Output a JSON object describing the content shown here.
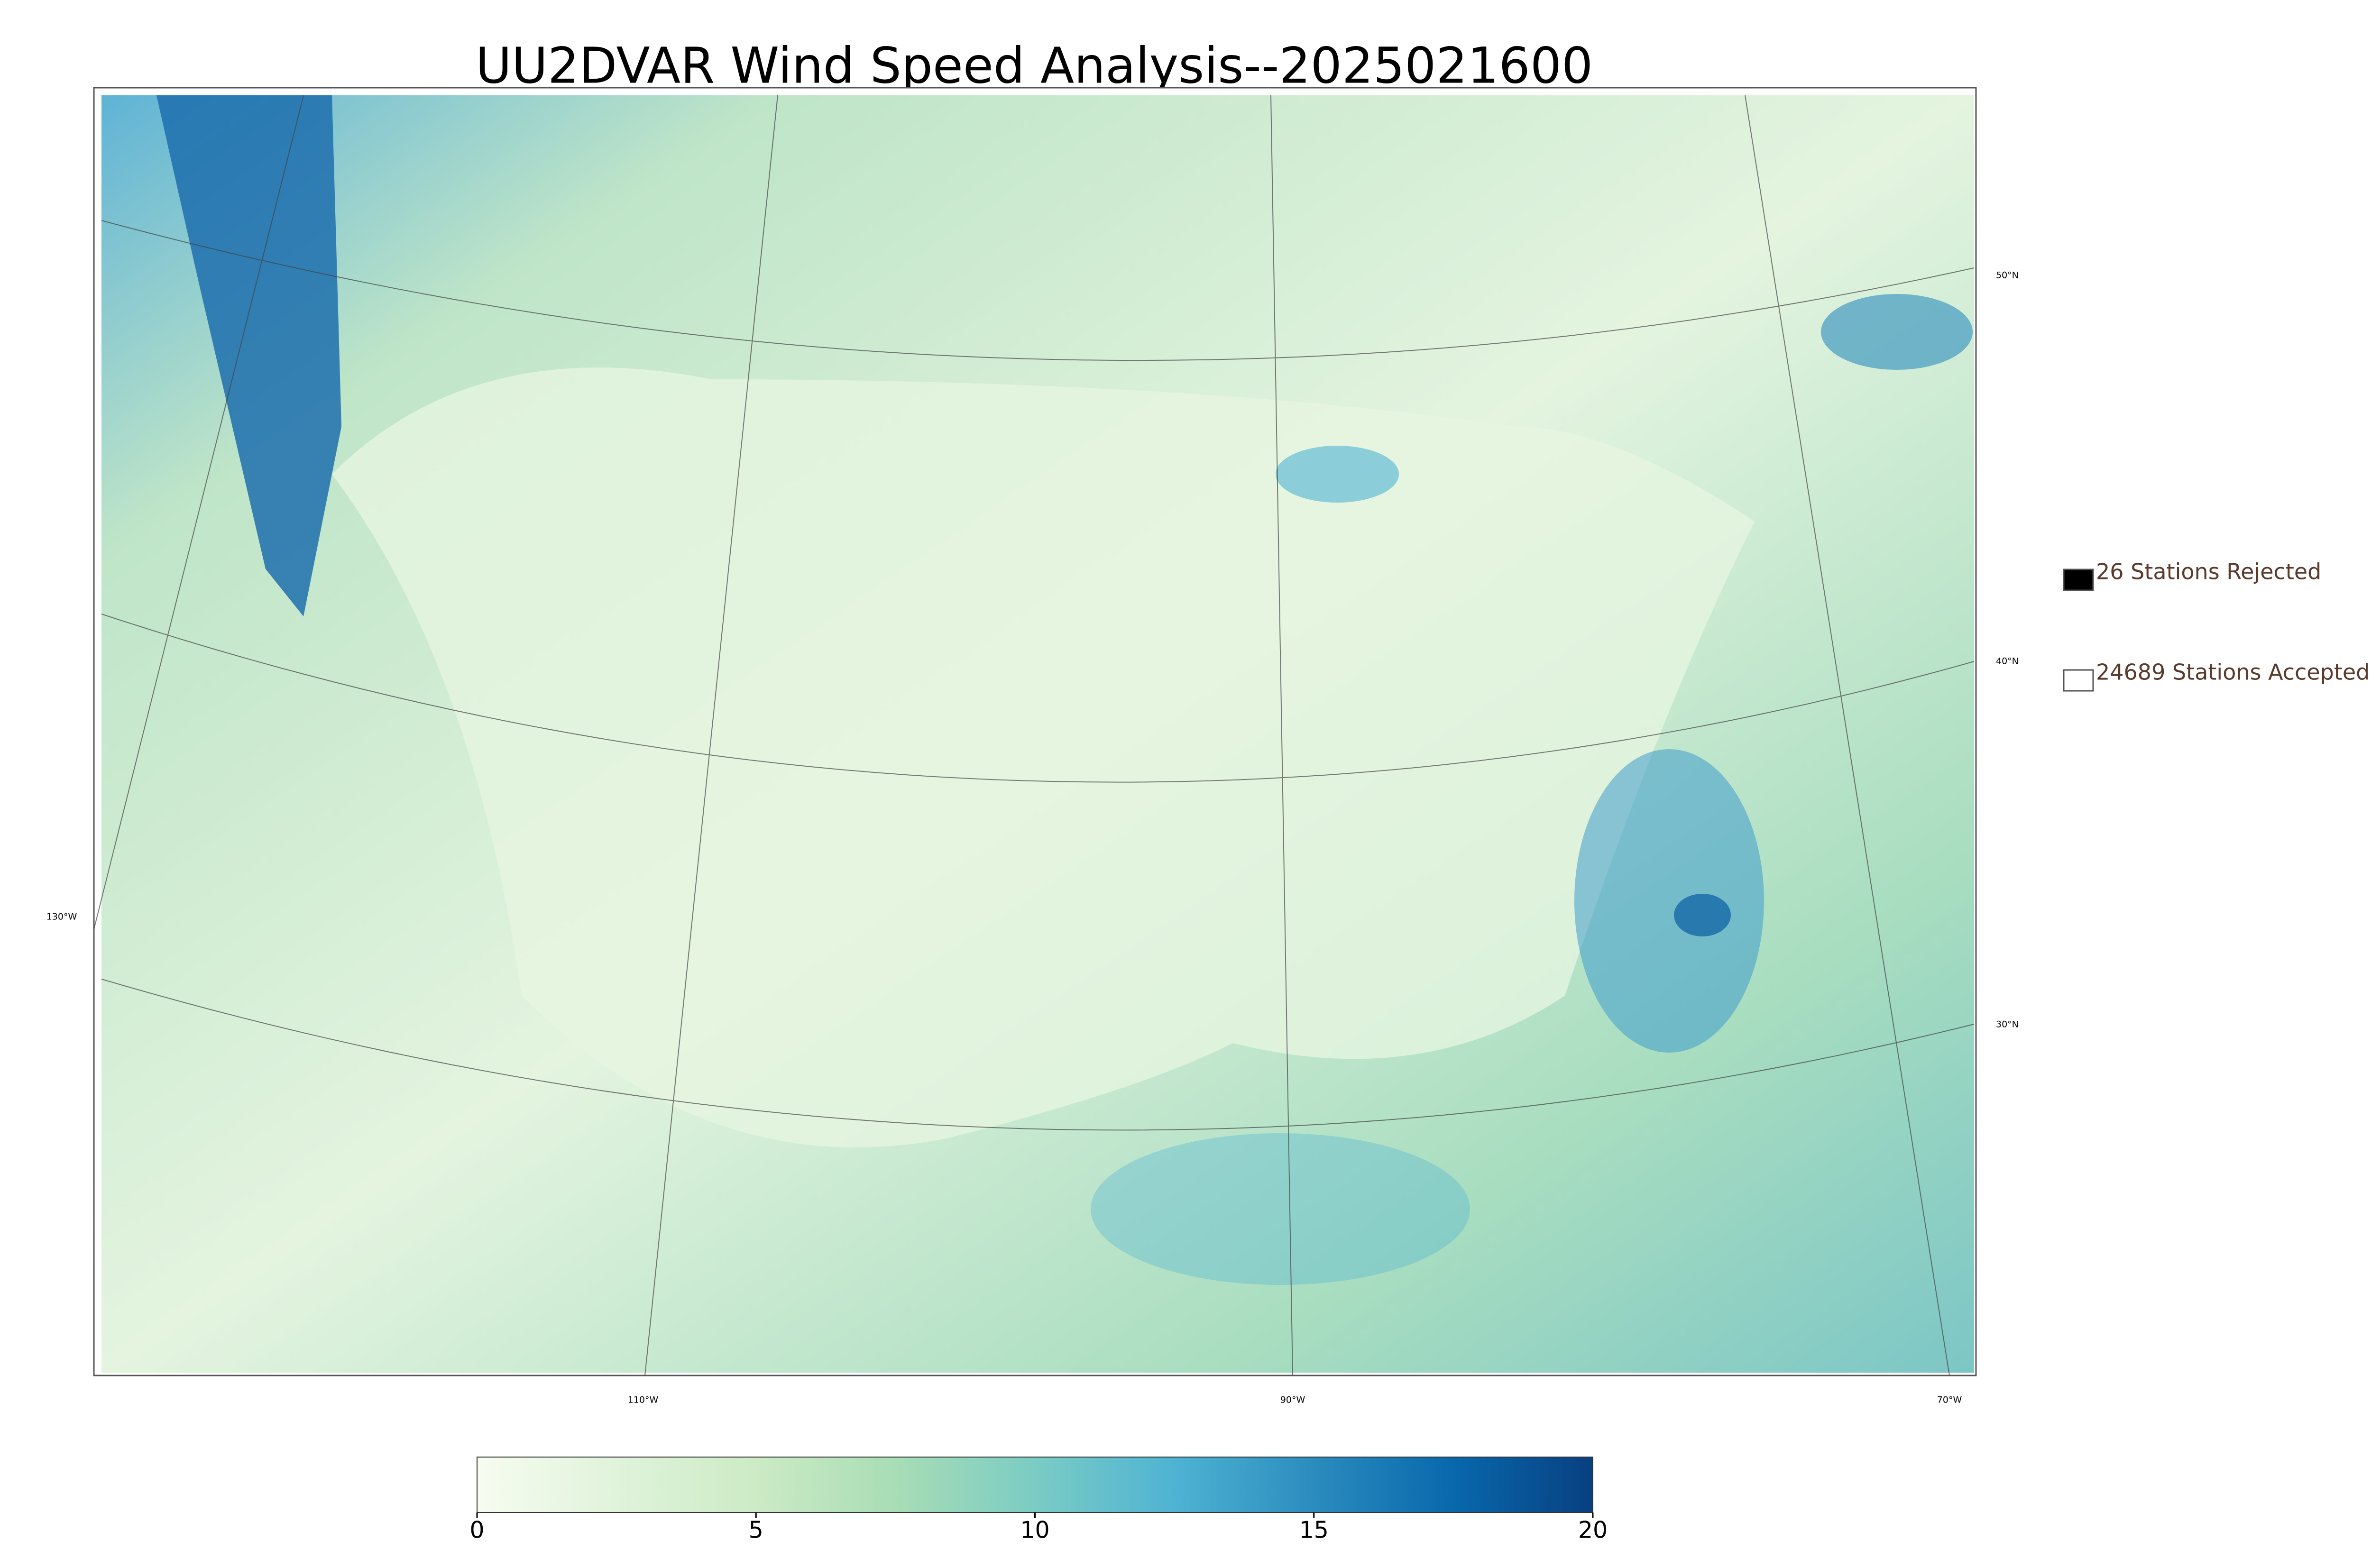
{
  "title": "UU2DVAR Wind Speed Analysis--2025021600",
  "legend": [
    {
      "label": "26 Stations Rejected",
      "fill": "#000000"
    },
    {
      "label": "24689 Stations Accepted",
      "fill": "#ffffff"
    }
  ],
  "latitude_labels": [
    "50°N",
    "40°N",
    "30°N"
  ],
  "longitude_labels": [
    "130°W",
    "110°W",
    "90°W",
    "70°W"
  ],
  "colorbar": {
    "lim": [
      0,
      20
    ],
    "ticks": [
      0,
      5,
      10,
      15,
      20
    ],
    "colors": [
      "#f7fcf0",
      "#e0f3db",
      "#ccebc5",
      "#a8ddb5",
      "#7bccc4",
      "#4eb3d3",
      "#2b8cbe",
      "#0868ac",
      "#084081"
    ]
  }
}
